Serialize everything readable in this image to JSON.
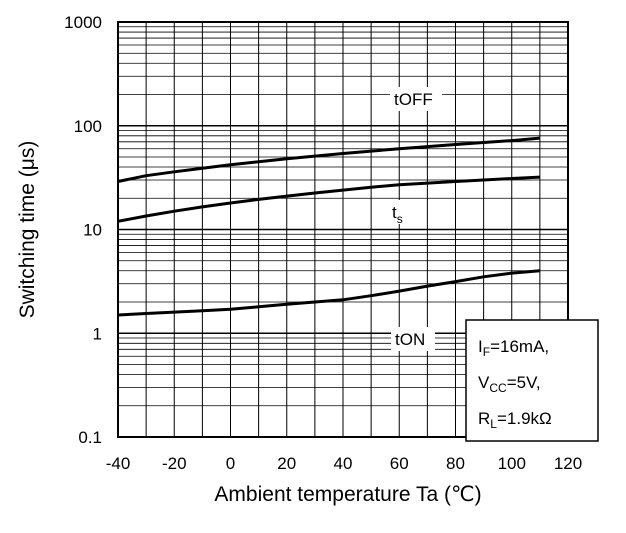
{
  "chart_data": {
    "type": "line",
    "xlabel": "Ambient temperature  Ta (℃)",
    "ylabel": "Switching time  (μs)",
    "xlim": [
      -40,
      120
    ],
    "ylim": [
      0.1,
      1000
    ],
    "yscale": "log",
    "grid": true,
    "x_ticks": [
      "-40",
      "-20",
      "0",
      "20",
      "40",
      "60",
      "80",
      "100",
      "120"
    ],
    "y_ticks": [
      "0.1",
      "1",
      "10",
      "100",
      "1000"
    ],
    "series": [
      {
        "name": "tOFF",
        "x": [
          -40,
          -30,
          -20,
          -10,
          0,
          10,
          20,
          30,
          40,
          50,
          60,
          70,
          80,
          90,
          100,
          110
        ],
        "y": [
          29,
          33,
          36,
          39,
          42,
          45,
          48,
          51,
          54,
          57,
          60,
          63,
          66,
          69,
          72,
          76
        ]
      },
      {
        "name": "ts",
        "x": [
          -40,
          -30,
          -20,
          -10,
          0,
          10,
          20,
          30,
          40,
          50,
          60,
          70,
          80,
          90,
          100,
          110
        ],
        "y": [
          12,
          13.5,
          15,
          16.5,
          18,
          19.5,
          21,
          22.5,
          24,
          25.5,
          27,
          28,
          29,
          30,
          31,
          32
        ]
      },
      {
        "name": "tON",
        "x": [
          -40,
          -30,
          -20,
          -10,
          0,
          10,
          20,
          30,
          40,
          50,
          60,
          70,
          80,
          90,
          100,
          110
        ],
        "y": [
          1.5,
          1.55,
          1.6,
          1.65,
          1.7,
          1.8,
          1.9,
          2.0,
          2.1,
          2.3,
          2.55,
          2.85,
          3.15,
          3.5,
          3.8,
          4.0
        ]
      }
    ],
    "annotations": {
      "toff": {
        "main": "tOFF"
      },
      "ts": {
        "main": "t",
        "sub": "s"
      },
      "ton": {
        "main": "tON"
      }
    },
    "conditions": {
      "line1": {
        "main": "I",
        "sub": "F",
        "rest": "=16mA,"
      },
      "line2": {
        "main": "V",
        "sub": "CC",
        "rest": "=5V,"
      },
      "line3": {
        "main": "R",
        "sub": "L",
        "rest": "=1.9kΩ"
      }
    }
  }
}
